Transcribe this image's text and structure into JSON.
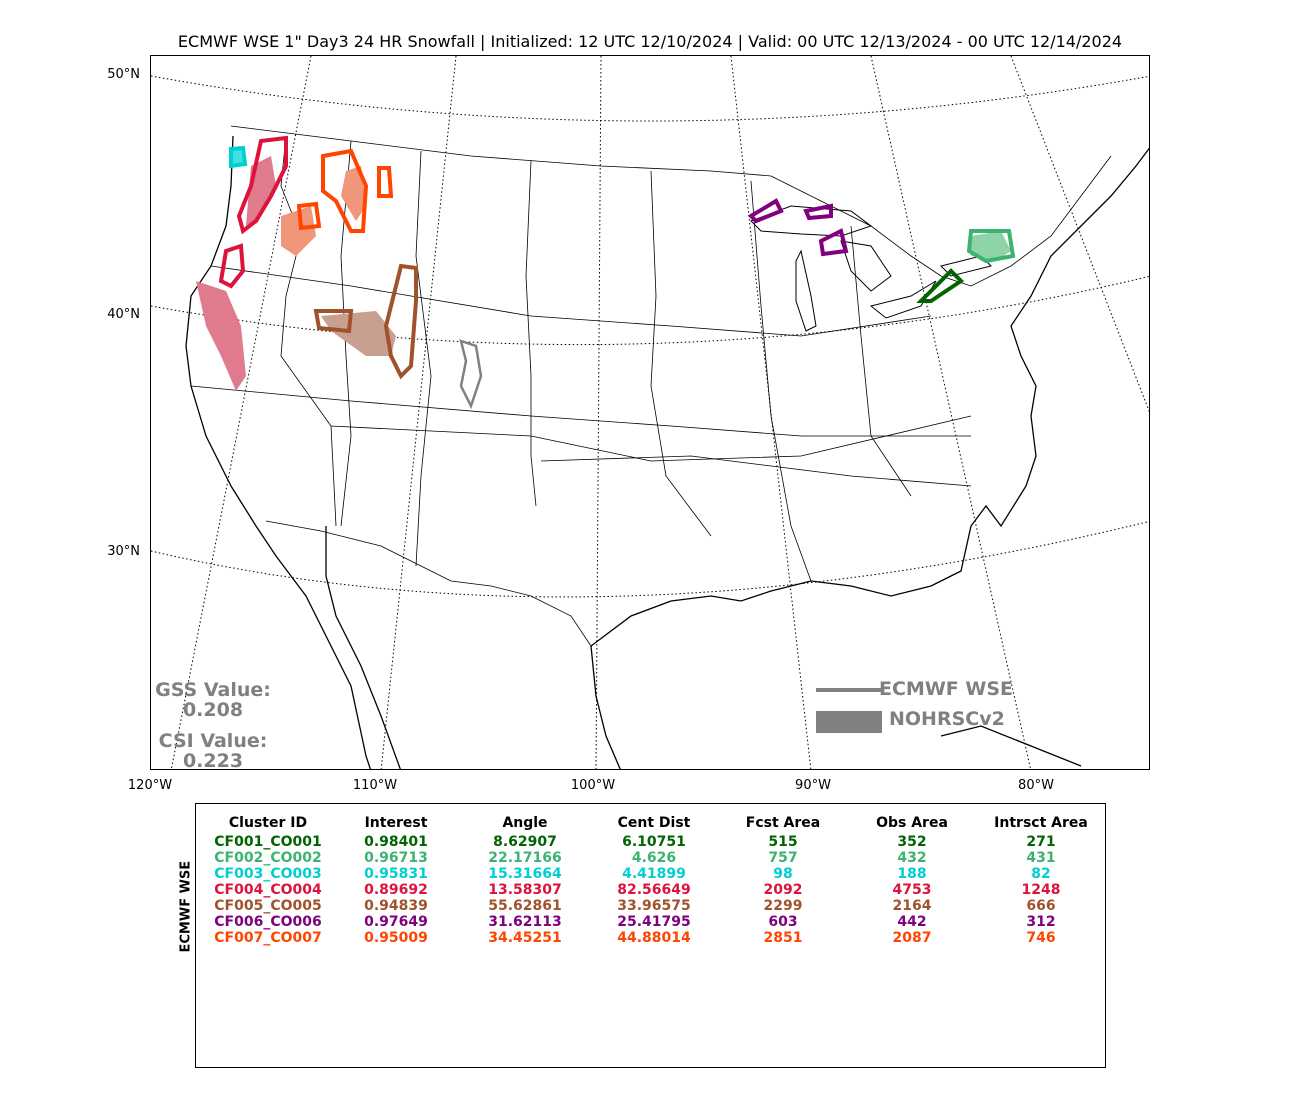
{
  "title": "ECMWF WSE 1\" Day3 24 HR Snowfall | Initialized: 12 UTC 12/10/2024 | Valid: 00 UTC 12/13/2024 - 00 UTC 12/14/2024",
  "lat_labels": [
    "50°N",
    "40°N",
    "30°N"
  ],
  "lon_labels": [
    "120°W",
    "110°W",
    "100°W",
    "90°W",
    "80°W"
  ],
  "scores": {
    "gss_label": "GSS Value:",
    "gss_value": "0.208",
    "csi_label": "CSI Value:",
    "csi_value": "0.223"
  },
  "legend": {
    "line_label": "ECMWF WSE",
    "fill_label": "NOHRSCv2",
    "color": "#808080"
  },
  "table": {
    "side_label": "ECMWF WSE",
    "headers": [
      "Cluster ID",
      "Interest",
      "Angle",
      "Cent Dist",
      "Fcst Area",
      "Obs Area",
      "Intrsct Area"
    ],
    "rows": [
      {
        "color": "#006400",
        "cells": [
          "CF001_CO001",
          "0.98401",
          "8.62907",
          "6.10751",
          "515",
          "352",
          "271"
        ]
      },
      {
        "color": "#3cb371",
        "cells": [
          "CF002_CO002",
          "0.96713",
          "22.17166",
          "4.626",
          "757",
          "432",
          "431"
        ]
      },
      {
        "color": "#00ced1",
        "cells": [
          "CF003_CO003",
          "0.95831",
          "15.31664",
          "4.41899",
          "98",
          "188",
          "82"
        ]
      },
      {
        "color": "#dc143c",
        "cells": [
          "CF004_CO004",
          "0.89692",
          "13.58307",
          "82.56649",
          "2092",
          "4753",
          "1248"
        ]
      },
      {
        "color": "#a0522d",
        "cells": [
          "CF005_CO005",
          "0.94839",
          "55.62861",
          "33.96575",
          "2299",
          "2164",
          "666"
        ]
      },
      {
        "color": "#800080",
        "cells": [
          "CF006_CO006",
          "0.97649",
          "31.62113",
          "25.41795",
          "603",
          "442",
          "312"
        ]
      },
      {
        "color": "#ff4500",
        "cells": [
          "CF007_CO007",
          "0.95009",
          "34.45251",
          "44.88014",
          "2851",
          "2087",
          "746"
        ]
      }
    ]
  },
  "clusters": [
    {
      "id": "CF001_CO001",
      "color": "#006400",
      "fill": "#006400"
    },
    {
      "id": "CF002_CO002",
      "color": "#3cb371",
      "fill": "#8fd4a8"
    },
    {
      "id": "CF003_CO003",
      "color": "#00ced1",
      "fill": "#40e0e0"
    },
    {
      "id": "CF004_CO004",
      "color": "#dc143c",
      "fill": "#e07b8e"
    },
    {
      "id": "CF005_CO005",
      "color": "#a0522d",
      "fill": "#c8a090"
    },
    {
      "id": "CF006_CO006",
      "color": "#800080",
      "fill": "#a050a0"
    },
    {
      "id": "CF007_CO007",
      "color": "#ff4500",
      "fill": "#f0967a"
    }
  ]
}
